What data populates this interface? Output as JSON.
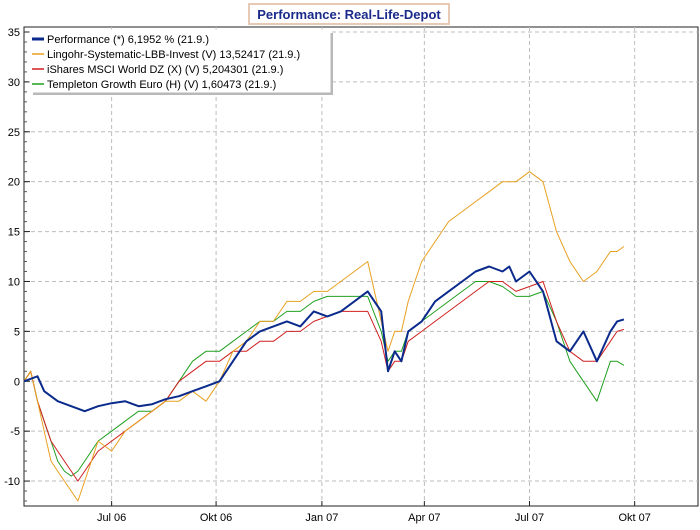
{
  "chart_data": {
    "type": "line",
    "title": "Performance: Real-Life-Depot",
    "xlabel": "",
    "ylabel": "",
    "ylim": [
      -12.5,
      35.5
    ],
    "xlim": [
      0,
      100
    ],
    "yticks": [
      -10,
      -5,
      0,
      5,
      10,
      15,
      20,
      25,
      30,
      35
    ],
    "ytick_labels": [
      "-10",
      "-5",
      "0",
      "5",
      "10",
      "15",
      "20",
      "25",
      "30",
      "35"
    ],
    "xticks": [
      {
        "label": "Jul 06",
        "x": 13.0
      },
      {
        "label": "Okt 06",
        "x": 28.5
      },
      {
        "label": "Jan 07",
        "x": 44.2
      },
      {
        "label": "Apr 07",
        "x": 59.4
      },
      {
        "label": "Jul 07",
        "x": 75.0
      },
      {
        "label": "Okt 07",
        "x": 90.6
      }
    ],
    "grid": true,
    "legend_position": "top-left",
    "series": [
      {
        "name": "Performance (*) 6,1952 % (21.9.)",
        "color": "#0a2a8c",
        "width": 2,
        "x": [
          0,
          2,
          3,
          5,
          7,
          9,
          11,
          13,
          15,
          17,
          19,
          21,
          23,
          25,
          27,
          29,
          31,
          33,
          35,
          37,
          39,
          41,
          43,
          45,
          47,
          49,
          51,
          53,
          54,
          55,
          56,
          57,
          59,
          61,
          63,
          65,
          67,
          69,
          71,
          72,
          73,
          75,
          77,
          79,
          81,
          83,
          85,
          87,
          88,
          89
        ],
        "y": [
          0,
          0.5,
          -1,
          -2,
          -2.5,
          -3,
          -2.5,
          -2.2,
          -2,
          -2.5,
          -2.3,
          -1.8,
          -1.5,
          -1,
          -0.5,
          0,
          2,
          4,
          5,
          5.5,
          6,
          5.5,
          7,
          6.5,
          7,
          8,
          9,
          7,
          1,
          3,
          2,
          5,
          6,
          8,
          9,
          10,
          11,
          11.5,
          11,
          11.5,
          10,
          11,
          9,
          4,
          3,
          5,
          2,
          5,
          6,
          6.2
        ]
      },
      {
        "name": "Lingohr-Systematic-LBB-Invest (V) 13,52417 (21.9.)",
        "color": "#e8a020",
        "width": 1,
        "x": [
          0,
          1,
          2,
          3,
          4,
          5,
          6,
          7,
          8,
          9,
          10,
          11,
          13,
          15,
          17,
          19,
          21,
          23,
          25,
          27,
          29,
          31,
          33,
          35,
          37,
          39,
          41,
          43,
          45,
          47,
          49,
          51,
          53,
          54,
          55,
          56,
          57,
          59,
          61,
          63,
          65,
          67,
          69,
          71,
          72,
          73,
          75,
          77,
          79,
          81,
          83,
          85,
          87,
          88,
          89
        ],
        "y": [
          0,
          1,
          -2,
          -5,
          -8,
          -9,
          -10,
          -11,
          -12,
          -10,
          -8,
          -6,
          -7,
          -5,
          -4,
          -3,
          -2,
          -2,
          -1,
          -2,
          0,
          3,
          4,
          6,
          6,
          8,
          8,
          9,
          9,
          10,
          11,
          12,
          6,
          3,
          5,
          5,
          8,
          12,
          14,
          16,
          17,
          18,
          19,
          20,
          20,
          20,
          21,
          20,
          15,
          12,
          10,
          11,
          13,
          13,
          13.5
        ]
      },
      {
        "name": "iShares MSCI World DZ (X) (V) 5,204301 (21.9.)",
        "color": "#d02020",
        "width": 1,
        "x": [
          0,
          1,
          2,
          3,
          4,
          5,
          6,
          7,
          8,
          9,
          10,
          11,
          13,
          15,
          17,
          19,
          21,
          23,
          25,
          27,
          29,
          31,
          33,
          35,
          37,
          39,
          41,
          43,
          45,
          47,
          49,
          51,
          53,
          54,
          55,
          56,
          57,
          59,
          61,
          63,
          65,
          67,
          69,
          71,
          72,
          73,
          75,
          77,
          79,
          81,
          83,
          85,
          87,
          88,
          89
        ],
        "y": [
          0,
          1,
          -2,
          -4,
          -6,
          -7,
          -8,
          -9,
          -10,
          -9,
          -8,
          -7,
          -6,
          -5,
          -4,
          -3,
          -2,
          0,
          1,
          2,
          2,
          3,
          3,
          4,
          4,
          5,
          5,
          6,
          6.5,
          7,
          7,
          7,
          4,
          1,
          2,
          2,
          4,
          5,
          6,
          7,
          8,
          9,
          10,
          10,
          9.5,
          9,
          9.5,
          10,
          6,
          3,
          2,
          2,
          4,
          5,
          5.2
        ]
      },
      {
        "name": "Templeton Growth Euro (H) (V) 1,60473 (21.9.)",
        "color": "#20a020",
        "width": 1,
        "x": [
          0,
          1,
          2,
          3,
          4,
          5,
          6,
          7,
          8,
          9,
          10,
          11,
          13,
          15,
          17,
          19,
          21,
          23,
          25,
          27,
          29,
          31,
          33,
          35,
          37,
          39,
          41,
          43,
          45,
          47,
          49,
          51,
          53,
          54,
          55,
          56,
          57,
          59,
          61,
          63,
          65,
          67,
          69,
          71,
          72,
          73,
          75,
          77,
          79,
          81,
          83,
          85,
          87,
          88,
          89
        ],
        "y": [
          0,
          1,
          -2,
          -4,
          -6,
          -8,
          -9,
          -9.5,
          -9,
          -8,
          -7,
          -6,
          -5,
          -4,
          -3,
          -3,
          -2,
          0,
          2,
          3,
          3,
          4,
          5,
          6,
          6,
          7,
          7,
          8,
          8.5,
          8.5,
          8.5,
          8.5,
          5,
          2,
          3,
          3,
          5,
          6,
          7,
          8,
          9,
          10,
          10,
          9.5,
          9,
          8.5,
          8.5,
          9,
          6,
          2,
          0,
          -2,
          2,
          2,
          1.6
        ]
      }
    ]
  }
}
